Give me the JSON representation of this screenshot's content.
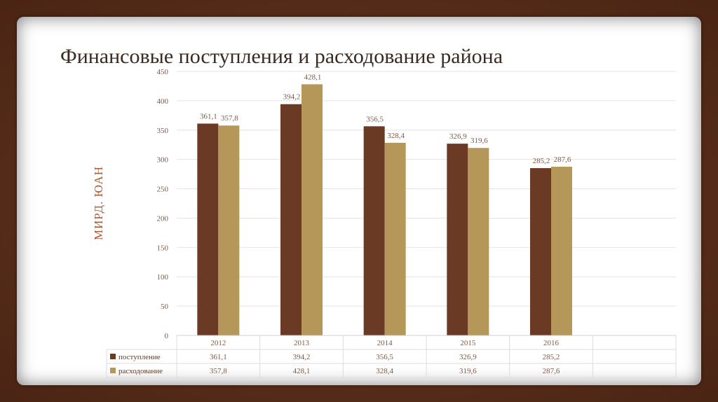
{
  "slide": {
    "title": "Финансовые поступления и расходование района"
  },
  "chart_data": {
    "type": "bar",
    "title": "Финансовые поступления и расходование района",
    "ylabel": "МИРД. ЮАН",
    "xlabel": "",
    "ylim": [
      0,
      450
    ],
    "yticks": [
      0,
      50,
      100,
      150,
      200,
      250,
      300,
      350,
      400,
      450
    ],
    "grid": true,
    "legend": "data-table",
    "categories": [
      "2012",
      "2013",
      "2014",
      "2015",
      "2016"
    ],
    "series": [
      {
        "name": "поступление",
        "color": "#6b3a24",
        "values": [
          361.1,
          394.2,
          356.5,
          326.9,
          285.2
        ],
        "labels": [
          "361,1",
          "394,2",
          "356,5",
          "326,9",
          "285,2"
        ]
      },
      {
        "name": "расходование",
        "color": "#b5975a",
        "values": [
          357.8,
          428.1,
          328.4,
          319.6,
          287.6
        ],
        "labels": [
          "357,8",
          "428,1",
          "328,4",
          "319,6",
          "287,6"
        ]
      }
    ]
  }
}
